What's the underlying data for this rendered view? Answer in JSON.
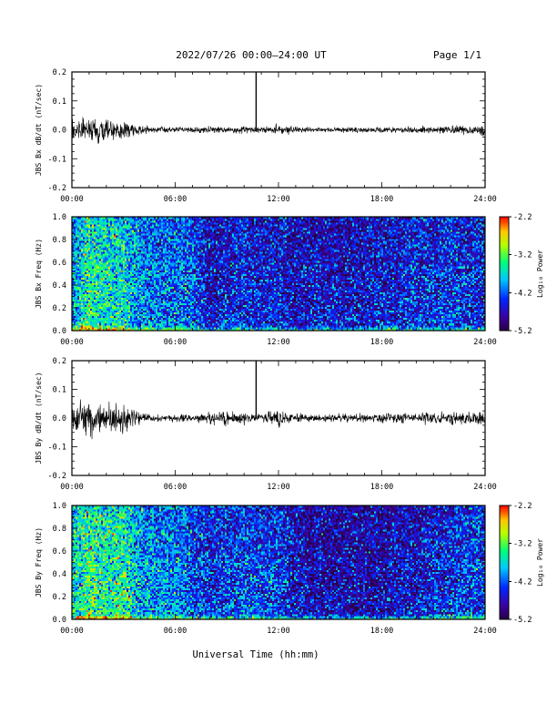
{
  "header": {
    "title": "2022/07/26  00:00—24:00 UT",
    "page": "Page 1/1"
  },
  "x_axis_title": "Universal Time (hh:mm)",
  "chart_data": [
    {
      "type": "line",
      "ylabel": "JBS Bx dB/dt (nT/sec)",
      "xlim": [
        0,
        24
      ],
      "ylim": [
        -0.2,
        0.2
      ],
      "x_ticks": [
        "00:00",
        "06:00",
        "12:00",
        "18:00",
        "24:00"
      ],
      "y_ticks": [
        "0.2",
        "0.1",
        "0.0",
        "-0.1",
        "-0.2"
      ],
      "spike": {
        "x": 10.7,
        "y": 0.2
      },
      "noise_envelope": {
        "hours": [
          0,
          1,
          2,
          3,
          4,
          5,
          6,
          7,
          8,
          9,
          10,
          11,
          12,
          13,
          14,
          15,
          16,
          17,
          18,
          19,
          20,
          21,
          22,
          23,
          24
        ],
        "amplitude": [
          0.02,
          0.025,
          0.025,
          0.02,
          0.012,
          0.008,
          0.006,
          0.006,
          0.007,
          0.007,
          0.008,
          0.006,
          0.012,
          0.007,
          0.006,
          0.006,
          0.006,
          0.006,
          0.006,
          0.007,
          0.008,
          0.008,
          0.009,
          0.01,
          0.012
        ]
      }
    },
    {
      "type": "heatmap",
      "ylabel": "JBS Bx Freq (Hz)",
      "xlim": [
        0,
        24
      ],
      "ylim": [
        0,
        1
      ],
      "x_ticks": [
        "00:00",
        "06:00",
        "12:00",
        "18:00",
        "24:00"
      ],
      "y_ticks": [
        "1.0",
        "0.8",
        "0.6",
        "0.4",
        "0.2",
        "0.0"
      ],
      "colorbar": {
        "label": "Log₁₀ Power",
        "ticks": [
          "-2.2",
          "-3.2",
          "-4.2",
          "-5.2"
        ],
        "range": [
          -5.2,
          -2.2
        ]
      },
      "power_profile": {
        "hours": [
          0,
          1,
          2,
          3,
          4,
          5,
          6,
          7,
          8,
          9,
          10,
          11,
          12,
          13,
          14,
          15,
          16,
          17,
          18,
          19,
          20,
          21,
          22,
          23,
          24
        ],
        "log_power": [
          -3.9,
          -3.5,
          -3.6,
          -3.6,
          -4.0,
          -4.1,
          -4.1,
          -4.2,
          -4.6,
          -4.5,
          -4.4,
          -4.5,
          -4.5,
          -4.6,
          -4.6,
          -4.6,
          -4.6,
          -4.6,
          -4.5,
          -4.5,
          -4.4,
          -4.4,
          -4.4,
          -4.4,
          -4.4
        ]
      }
    },
    {
      "type": "line",
      "ylabel": "JBS By dB/dt (nT/sec)",
      "xlim": [
        0,
        24
      ],
      "ylim": [
        -0.2,
        0.2
      ],
      "x_ticks": [
        "00:00",
        "06:00",
        "12:00",
        "18:00",
        "24:00"
      ],
      "y_ticks": [
        "0.2",
        "0.1",
        "0.0",
        "-0.1",
        "-0.2"
      ],
      "spike": {
        "x": 10.7,
        "y": 0.2
      },
      "noise_envelope": {
        "hours": [
          0,
          1,
          2,
          3,
          4,
          5,
          6,
          7,
          8,
          9,
          10,
          11,
          12,
          13,
          14,
          15,
          16,
          17,
          18,
          19,
          20,
          21,
          22,
          23,
          24
        ],
        "amplitude": [
          0.03,
          0.04,
          0.035,
          0.03,
          0.012,
          0.008,
          0.008,
          0.01,
          0.012,
          0.015,
          0.012,
          0.01,
          0.02,
          0.01,
          0.009,
          0.009,
          0.01,
          0.01,
          0.01,
          0.012,
          0.014,
          0.012,
          0.015,
          0.014,
          0.016
        ]
      }
    },
    {
      "type": "heatmap",
      "ylabel": "JBS By Freq (Hz)",
      "xlim": [
        0,
        24
      ],
      "ylim": [
        0,
        1
      ],
      "x_ticks": [
        "00:00",
        "06:00",
        "12:00",
        "18:00",
        "24:00"
      ],
      "y_ticks": [
        "1.0",
        "0.8",
        "0.6",
        "0.4",
        "0.2",
        "0.0"
      ],
      "colorbar": {
        "label": "Log₁₀ Power",
        "ticks": [
          "-2.2",
          "-3.2",
          "-4.2",
          "-5.2"
        ],
        "range": [
          -5.2,
          -2.2
        ]
      },
      "power_profile": {
        "hours": [
          0,
          1,
          2,
          3,
          4,
          5,
          6,
          7,
          8,
          9,
          10,
          11,
          12,
          13,
          14,
          15,
          16,
          17,
          18,
          19,
          20,
          21,
          22,
          23,
          24
        ],
        "log_power": [
          -3.7,
          -3.3,
          -3.5,
          -3.4,
          -3.9,
          -4.0,
          -4.0,
          -4.2,
          -4.4,
          -4.3,
          -4.2,
          -4.3,
          -4.3,
          -4.6,
          -4.7,
          -4.7,
          -4.7,
          -4.7,
          -4.7,
          -4.6,
          -4.6,
          -4.4,
          -4.4,
          -4.3,
          -4.3
        ]
      }
    }
  ]
}
